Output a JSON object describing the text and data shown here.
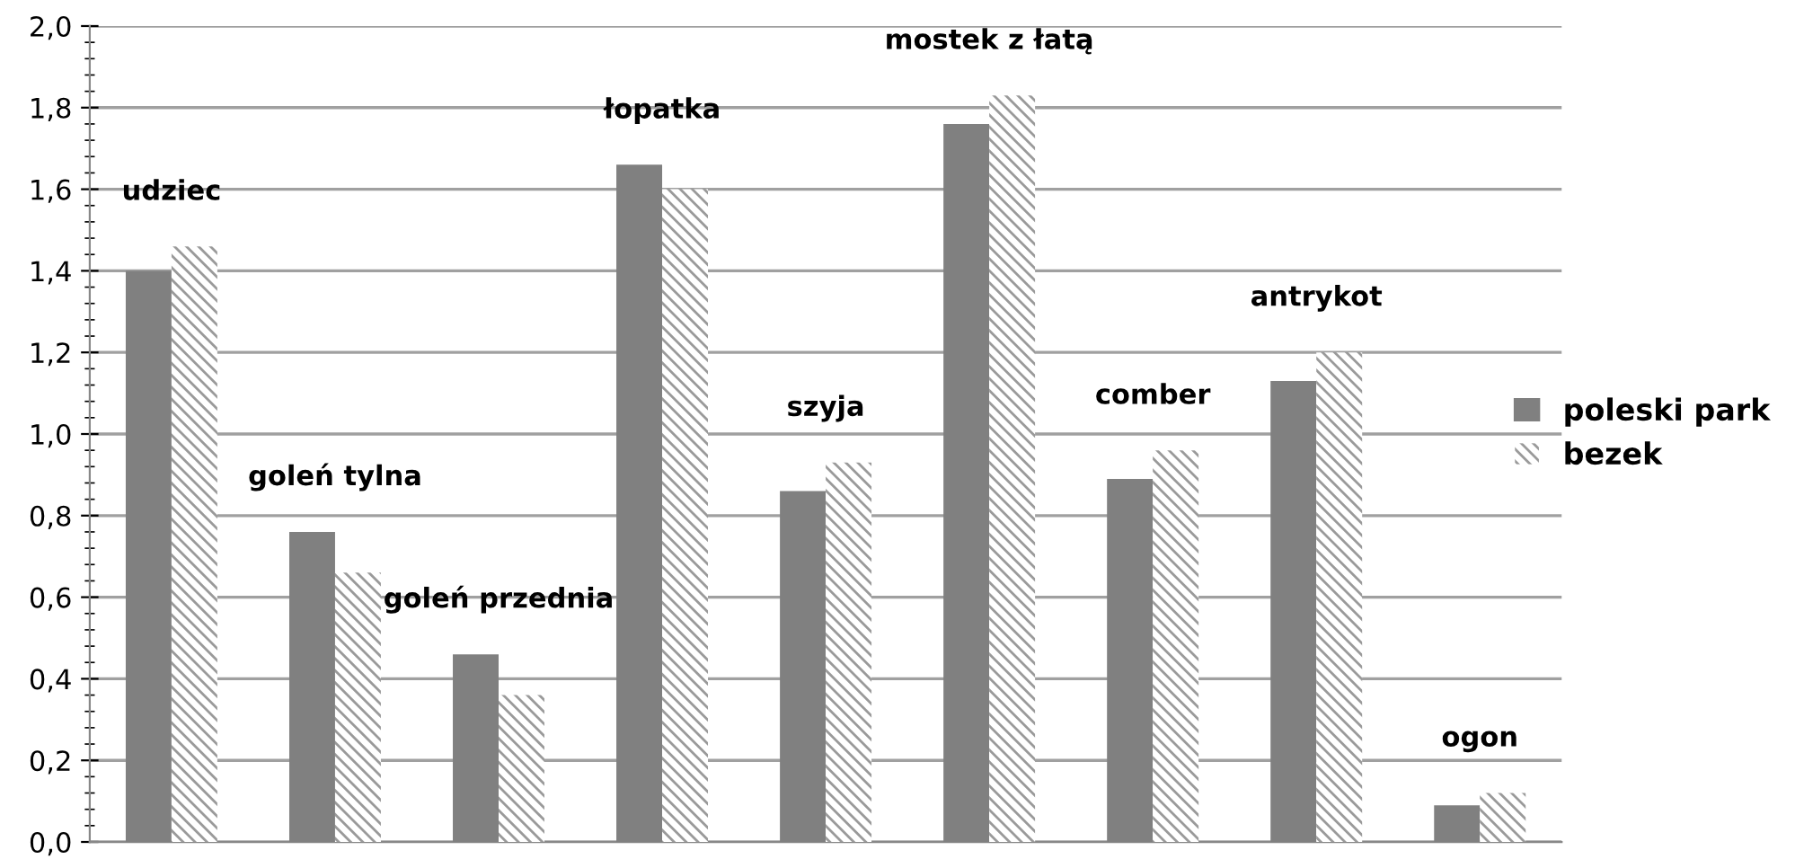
{
  "chart_data": {
    "type": "bar",
    "categories": [
      null,
      null,
      null,
      null,
      null,
      null,
      null,
      null,
      null
    ],
    "annotations": [
      "udziec",
      "goleń tylna",
      "goleń przednia",
      "łopatka",
      "szyja",
      "mostek z łatą",
      "comber",
      "antrykot",
      "ogon"
    ],
    "series": [
      {
        "name": "poleski park",
        "color": "#808080",
        "values": [
          1.4,
          0.76,
          0.46,
          1.66,
          0.86,
          1.76,
          0.89,
          1.13,
          0.09
        ]
      },
      {
        "name": "bezek",
        "color": "#9a9a9a",
        "values": [
          1.46,
          0.66,
          0.36,
          1.6,
          0.93,
          1.83,
          0.96,
          1.2,
          0.12
        ]
      }
    ],
    "ylim": [
      0,
      2
    ],
    "yticks": [
      {
        "value": 0,
        "label": "0,0"
      },
      {
        "value": 0.2,
        "label": "0,2"
      },
      {
        "value": 0.4,
        "label": "0,4"
      },
      {
        "value": 0.6,
        "label": "0,6"
      },
      {
        "value": 0.8,
        "label": "0,8"
      },
      {
        "value": 1.0,
        "label": "1,0"
      },
      {
        "value": 1.2,
        "label": "1,2"
      },
      {
        "value": 1.4,
        "label": "1,4"
      },
      {
        "value": 1.6,
        "label": "1,6"
      },
      {
        "value": 1.8,
        "label": "1,8"
      },
      {
        "value": 2.0,
        "label": "2,0"
      }
    ],
    "grid": "y",
    "legend": "right",
    "tick_labels": "y"
  }
}
